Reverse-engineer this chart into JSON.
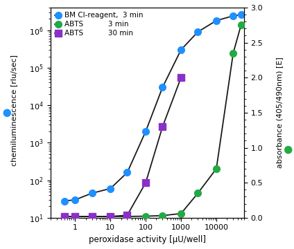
{
  "title": "",
  "xlabel": "peroxidase activity [μU/well]",
  "ylabel_left": "chemiluminescence [rlu/sec]",
  "ylabel_right": "absorbance (405/490nm) [E]",
  "xlim": [
    0.2,
    60000
  ],
  "ylim_left": [
    10,
    4000000.0
  ],
  "ylim_right": [
    0,
    3.0
  ],
  "bm_cl_x": [
    0.5,
    1,
    3,
    10,
    30,
    100,
    300,
    1000,
    3000,
    10000,
    30000,
    50000
  ],
  "bm_cl_y": [
    28,
    30,
    45,
    60,
    160,
    2000,
    30000,
    300000,
    900000,
    1800000,
    2400000,
    2600000
  ],
  "abts_3min_x": [
    0.5,
    1,
    3,
    10,
    30,
    100,
    300,
    1000,
    3000,
    10000,
    30000,
    50000
  ],
  "abts_3min_y": [
    0.018,
    0.018,
    0.018,
    0.018,
    0.018,
    0.022,
    0.03,
    0.06,
    0.35,
    0.7,
    2.35,
    2.75
  ],
  "abts_30min_x": [
    0.5,
    1,
    3,
    10,
    30,
    100,
    300,
    1000
  ],
  "abts_30min_y": [
    0.018,
    0.018,
    0.018,
    0.018,
    0.035,
    0.5,
    1.3,
    2.0
  ],
  "color_bm": "#1E90FF",
  "color_abts3": "#22AA44",
  "color_abts30": "#8B2FC9",
  "line_color": "#1a1a1a",
  "background_color": "#FFFFFF",
  "legend_label_bm": "BM Cl-reagent,  3 min",
  "legend_label_abts3": "ABTS",
  "legend_label_abts30": "ABTS",
  "legend_time_abts3": "3 min",
  "legend_time_abts30": "30 min"
}
